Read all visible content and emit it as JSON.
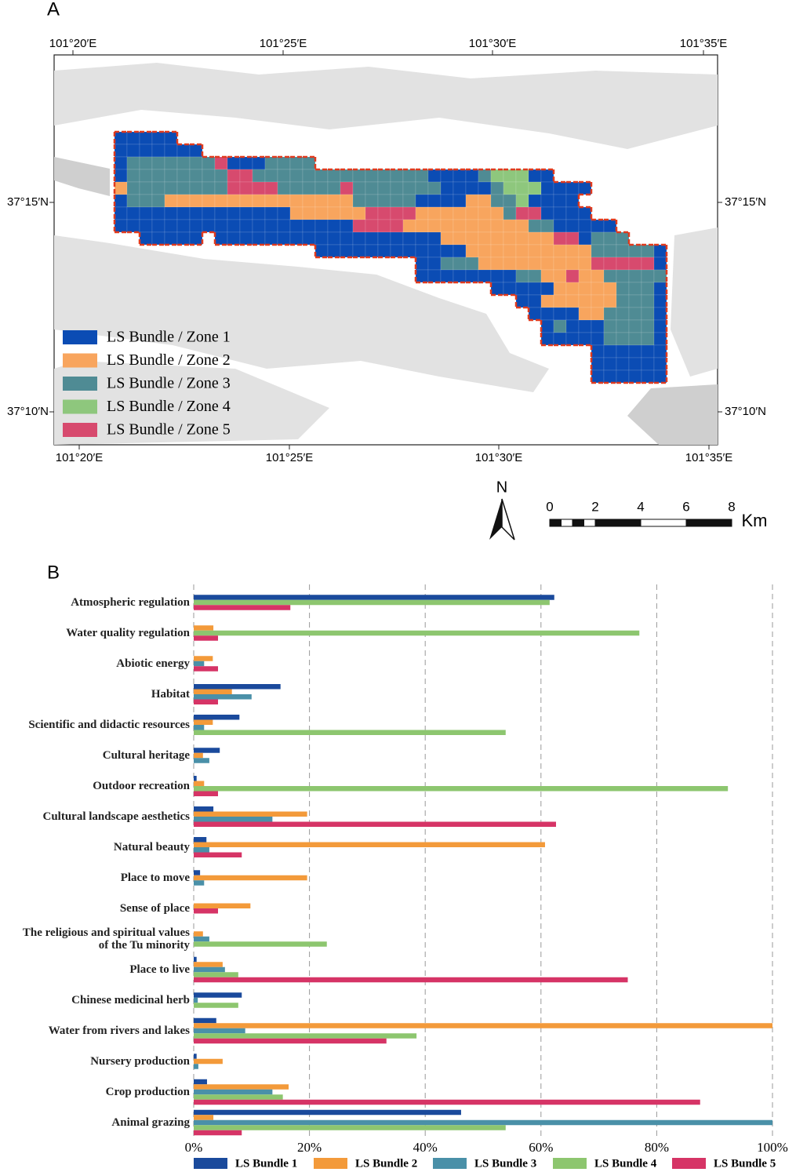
{
  "map": {
    "panel_label": "A",
    "lon_labels_top": [
      "101°20′E",
      "101°25′E",
      "101°30′E",
      "101°35′E"
    ],
    "lon_labels_bottom": [
      "101°20′E",
      "101°25′E",
      "101°30′E",
      "101°35′E"
    ],
    "lat_labels_left": [
      "37°15′N",
      "37°10′N"
    ],
    "lat_labels_right": [
      "37°15′N",
      "37°10′N"
    ],
    "legend": [
      {
        "name": "LS Bundle / Zone 1",
        "color": "#0b4cb4"
      },
      {
        "name": "LS Bundle / Zone 2",
        "color": "#f8a55e"
      },
      {
        "name": "LS Bundle / Zone 3",
        "color": "#4f8b94"
      },
      {
        "name": "LS Bundle / Zone 4",
        "color": "#8ec77d"
      },
      {
        "name": "LS Bundle / Zone 5",
        "color": "#d74a6e"
      }
    ],
    "north": "N",
    "scale_ticks": [
      0,
      2,
      4,
      6,
      8
    ],
    "scale_unit": "Km"
  },
  "chart_data": {
    "type": "hbar",
    "panel_label": "B",
    "categories": [
      "Atmospheric regulation",
      "Water quality regulation",
      "Abiotic energy",
      "Habitat",
      "Scientific and didactic resources",
      "Cultural heritage",
      "Outdoor recreation",
      "Cultural landscape aesthetics",
      "Natural beauty",
      "Place to move",
      "Sense of place",
      "The religious and spiritual values\nof the Tu minority",
      "Place to live",
      "Chinese medicinal herb",
      "Water from rivers and lakes",
      "Nursery production",
      "Crop production",
      "Animal grazing"
    ],
    "series": [
      {
        "name": "LS Bundle 1",
        "color": "#1a4a9c",
        "values": [
          62.3,
          null,
          null,
          15,
          7.9,
          4.5,
          0.5,
          3.4,
          2.2,
          1.1,
          null,
          null,
          0.5,
          8.3,
          3.9,
          0.5,
          2.3,
          46.2
        ]
      },
      {
        "name": "LS Bundle 2",
        "color": "#f39a3a",
        "values": [
          null,
          3.4,
          3.3,
          6.6,
          3.3,
          1.6,
          1.8,
          19.6,
          60.7,
          19.6,
          9.8,
          1.6,
          5,
          null,
          100,
          5,
          16.4,
          3.4
        ]
      },
      {
        "name": "LS Bundle 3",
        "color": "#4a90a8",
        "values": [
          null,
          null,
          1.8,
          10,
          1.8,
          2.7,
          null,
          13.6,
          2.7,
          1.8,
          null,
          2.7,
          5.4,
          0.7,
          8.9,
          0.8,
          13.6,
          100
        ]
      },
      {
        "name": "LS Bundle 4",
        "color": "#8dc66f",
        "values": [
          61.5,
          77,
          null,
          null,
          53.9,
          null,
          92.3,
          null,
          null,
          null,
          null,
          23,
          7.7,
          7.7,
          38.5,
          null,
          15.4,
          53.9
        ]
      },
      {
        "name": "LS Bundle 5",
        "color": "#d63466",
        "values": [
          16.7,
          4.2,
          4.2,
          4.2,
          null,
          null,
          4.2,
          62.6,
          8.3,
          null,
          4.2,
          null,
          75,
          null,
          33.3,
          null,
          87.5,
          8.3
        ]
      }
    ],
    "xlim": [
      0,
      100
    ],
    "xticks": [
      {
        "value": 0,
        "label": "0%"
      },
      {
        "value": 20,
        "label": "20%"
      },
      {
        "value": 40,
        "label": "40%"
      },
      {
        "value": 60,
        "label": "60%"
      },
      {
        "value": 80,
        "label": "80%"
      },
      {
        "value": 100,
        "label": "100%"
      }
    ],
    "grid": true
  }
}
